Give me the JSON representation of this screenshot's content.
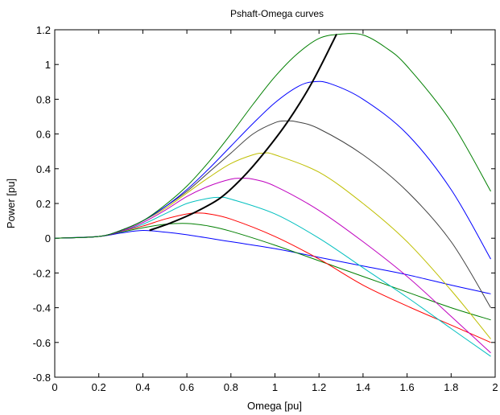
{
  "chart_data": {
    "type": "line",
    "title": "Pshaft-Omega curves",
    "xlabel": "Omega [pu]",
    "ylabel": "Power [pu]",
    "xlim": [
      0,
      2
    ],
    "ylim": [
      -0.8,
      1.2
    ],
    "xticks": [
      "0",
      "0.2",
      "0.4",
      "0.6",
      "0.8",
      "1",
      "1.2",
      "1.4",
      "1.6",
      "1.8",
      "2"
    ],
    "yticks": [
      "-0.8",
      "-0.6",
      "-0.4",
      "-0.2",
      "0",
      "0.2",
      "0.4",
      "0.6",
      "0.8",
      "1",
      "1.2"
    ],
    "grid": false,
    "legend": "none",
    "series": [
      {
        "color": "#0000ff",
        "x": [
          0,
          0.2,
          0.3,
          0.4,
          0.5,
          0.6,
          0.8,
          1.0,
          1.2,
          1.4,
          1.6,
          1.8,
          1.98
        ],
        "y": [
          0,
          0.01,
          0.03,
          0.045,
          0.035,
          0.02,
          -0.02,
          -0.06,
          -0.11,
          -0.16,
          -0.21,
          -0.27,
          -0.32
        ]
      },
      {
        "color": "#007f00",
        "x": [
          0,
          0.2,
          0.3,
          0.4,
          0.5,
          0.6,
          0.7,
          0.8,
          1.0,
          1.2,
          1.4,
          1.6,
          1.8,
          1.98
        ],
        "y": [
          0,
          0.01,
          0.035,
          0.06,
          0.08,
          0.085,
          0.07,
          0.04,
          -0.04,
          -0.13,
          -0.22,
          -0.31,
          -0.4,
          -0.47
        ]
      },
      {
        "color": "#ff0000",
        "x": [
          0,
          0.2,
          0.3,
          0.4,
          0.5,
          0.6,
          0.65,
          0.7,
          0.8,
          1.0,
          1.2,
          1.4,
          1.6,
          1.8,
          1.98
        ],
        "y": [
          0,
          0.01,
          0.04,
          0.07,
          0.11,
          0.14,
          0.145,
          0.14,
          0.11,
          0.01,
          -0.12,
          -0.27,
          -0.39,
          -0.5,
          -0.6
        ]
      },
      {
        "color": "#00bfbf",
        "x": [
          0,
          0.2,
          0.3,
          0.4,
          0.5,
          0.6,
          0.7,
          0.75,
          0.8,
          1.0,
          1.2,
          1.4,
          1.6,
          1.8,
          1.98
        ],
        "y": [
          0,
          0.01,
          0.04,
          0.08,
          0.14,
          0.2,
          0.23,
          0.235,
          0.225,
          0.14,
          0.0,
          -0.17,
          -0.34,
          -0.52,
          -0.68
        ]
      },
      {
        "color": "#bf00bf",
        "x": [
          0,
          0.2,
          0.3,
          0.4,
          0.5,
          0.6,
          0.7,
          0.8,
          0.85,
          0.9,
          1.0,
          1.2,
          1.4,
          1.6,
          1.8,
          1.98
        ],
        "y": [
          0,
          0.01,
          0.04,
          0.09,
          0.16,
          0.24,
          0.3,
          0.34,
          0.345,
          0.34,
          0.3,
          0.16,
          -0.02,
          -0.22,
          -0.45,
          -0.66
        ]
      },
      {
        "color": "#bfbf00",
        "x": [
          0,
          0.2,
          0.3,
          0.4,
          0.5,
          0.6,
          0.7,
          0.8,
          0.9,
          0.95,
          1.0,
          1.2,
          1.4,
          1.6,
          1.8,
          1.98
        ],
        "y": [
          0,
          0.01,
          0.045,
          0.1,
          0.17,
          0.26,
          0.35,
          0.43,
          0.48,
          0.49,
          0.48,
          0.38,
          0.2,
          -0.02,
          -0.3,
          -0.58
        ]
      },
      {
        "color": "#3f3f3f",
        "x": [
          0,
          0.2,
          0.3,
          0.4,
          0.5,
          0.6,
          0.7,
          0.8,
          0.9,
          1.0,
          1.05,
          1.1,
          1.2,
          1.4,
          1.6,
          1.8,
          1.98
        ],
        "y": [
          0,
          0.01,
          0.045,
          0.1,
          0.18,
          0.27,
          0.38,
          0.49,
          0.6,
          0.665,
          0.675,
          0.67,
          0.63,
          0.48,
          0.27,
          -0.02,
          -0.4
        ]
      },
      {
        "color": "#0000ff",
        "x": [
          0,
          0.2,
          0.3,
          0.4,
          0.5,
          0.6,
          0.7,
          0.8,
          0.9,
          1.0,
          1.1,
          1.17,
          1.25,
          1.4,
          1.6,
          1.8,
          1.98
        ],
        "y": [
          0,
          0.01,
          0.045,
          0.1,
          0.18,
          0.28,
          0.4,
          0.53,
          0.66,
          0.78,
          0.87,
          0.9,
          0.89,
          0.8,
          0.6,
          0.28,
          -0.12
        ]
      },
      {
        "color": "#007f00",
        "x": [
          0,
          0.2,
          0.3,
          0.4,
          0.5,
          0.6,
          0.7,
          0.8,
          0.9,
          1.0,
          1.1,
          1.2,
          1.3,
          1.4,
          1.5,
          1.6,
          1.8,
          1.98
        ],
        "y": [
          0,
          0.01,
          0.045,
          0.1,
          0.19,
          0.3,
          0.44,
          0.6,
          0.77,
          0.93,
          1.06,
          1.15,
          1.175,
          1.17,
          1.1,
          0.99,
          0.67,
          0.27
        ]
      },
      {
        "color": "#000000",
        "width": 2,
        "x": [
          0.43,
          0.53,
          0.63,
          0.75,
          0.85,
          0.95,
          1.06,
          1.17,
          1.28
        ],
        "y": [
          0.045,
          0.09,
          0.145,
          0.23,
          0.345,
          0.49,
          0.675,
          0.9,
          1.175
        ]
      }
    ]
  }
}
